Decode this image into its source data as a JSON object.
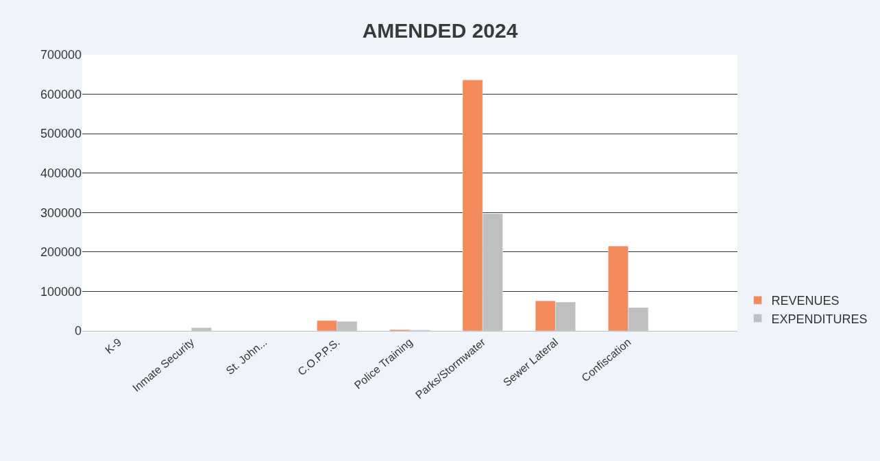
{
  "chart_data": {
    "type": "bar",
    "title": "AMENDED 2024",
    "categories": [
      "K-9",
      "Inmate Security",
      "St. John...",
      "C.O.P.P.S.",
      "Police Training",
      "Parks/Stormwater",
      "Sewer Lateral",
      "Confiscation",
      null
    ],
    "series": [
      {
        "name": "REVENUES",
        "color": "#f4895a",
        "values": [
          null,
          null,
          null,
          26000,
          3000,
          636000,
          76000,
          215000,
          null
        ]
      },
      {
        "name": "EXPENDITURES",
        "color": "#bfbfbf",
        "values": [
          null,
          8000,
          null,
          24000,
          2000,
          297000,
          73000,
          59000,
          null
        ]
      }
    ],
    "ylim": [
      0,
      700000
    ],
    "yticks": [
      0,
      100000,
      200000,
      300000,
      400000,
      500000,
      600000,
      700000
    ],
    "grid": "y",
    "legend": "bottom right"
  }
}
